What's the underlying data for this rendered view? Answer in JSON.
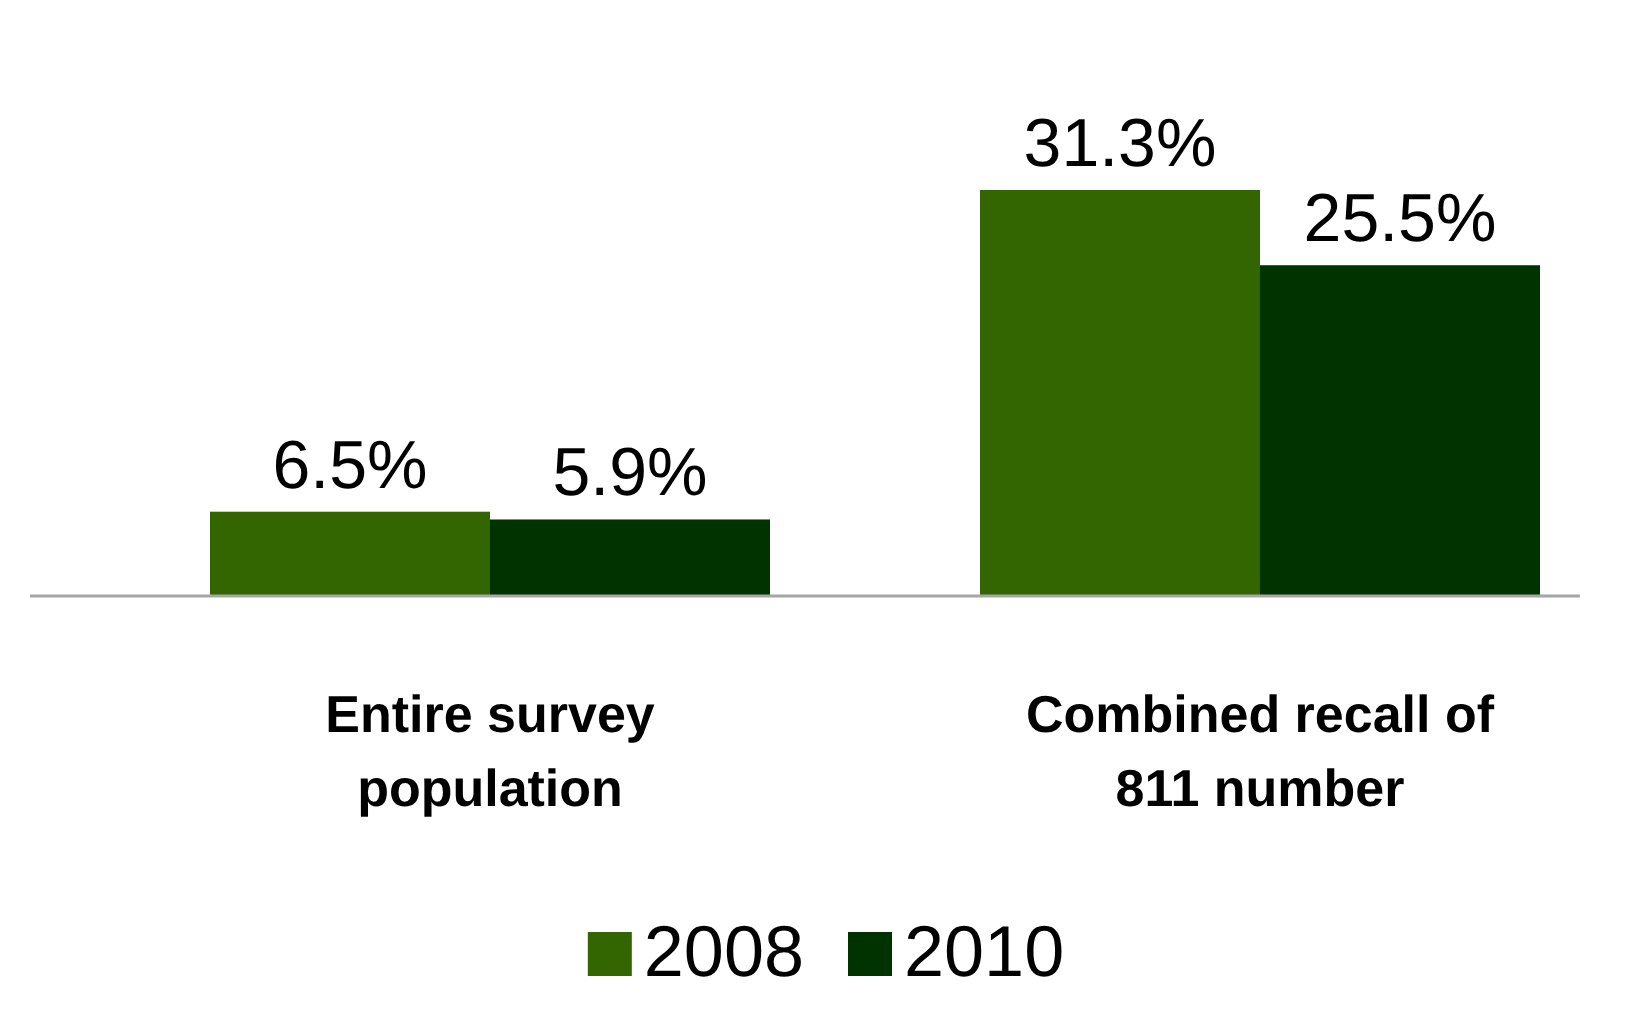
{
  "chart_data": {
    "type": "bar",
    "categories": [
      "Entire survey population",
      "Combined recall of 811 number"
    ],
    "series": [
      {
        "name": "2008",
        "color": "#336600",
        "values": [
          6.5,
          31.3
        ],
        "value_labels": [
          "6.5%",
          "31.3%"
        ]
      },
      {
        "name": "2010",
        "color": "#003300",
        "values": [
          5.9,
          25.5
        ],
        "value_labels": [
          "5.9%",
          "25.5%"
        ]
      }
    ],
    "legend": "bottom"
  }
}
